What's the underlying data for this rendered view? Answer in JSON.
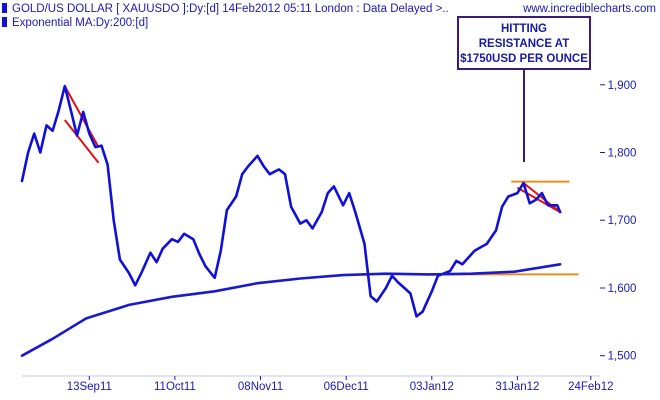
{
  "site": "www.incrediblecharts.com",
  "colors": {
    "price": "#1010d8",
    "ema": "#1a1acc",
    "trendline": "#e01010",
    "support": "#f08c1c",
    "axis_text": "#1a1ab0",
    "annotation_border": "#3c1a78",
    "annotation_text": "#1a1aa0"
  },
  "chart_data": {
    "type": "line",
    "legend": [
      {
        "label": "GOLD/US DOLLAR [ XAUUSDO ]:Dy:[d]  14Feb2012 05:11 London : Data Delayed >..",
        "icon": "color-swatch-icon"
      },
      {
        "label": "Exponential MA:Dy:200:[d]",
        "icon": "color-swatch-icon"
      }
    ],
    "annotation": {
      "lines": [
        "HITTING",
        "RESISTANCE AT",
        "$1750USD PER OUNCE"
      ]
    },
    "y_ticks": [
      {
        "value": 1500,
        "label": "1,500"
      },
      {
        "value": 1600,
        "label": "1,600"
      },
      {
        "value": 1700,
        "label": "1,700"
      },
      {
        "value": 1800,
        "label": "1,800"
      },
      {
        "value": 1900,
        "label": "1,900"
      }
    ],
    "x_ticks": [
      {
        "date": "2011-09-13",
        "label": "13Sep11"
      },
      {
        "date": "2011-10-11",
        "label": "11Oct11"
      },
      {
        "date": "2011-11-08",
        "label": "08Nov11"
      },
      {
        "date": "2011-12-06",
        "label": "06Dec11"
      },
      {
        "date": "2012-01-03",
        "label": "03Jan12"
      },
      {
        "date": "2012-01-31",
        "label": "31Jan12"
      },
      {
        "date": "2012-02-24",
        "label": "24Feb12"
      }
    ],
    "x_range": [
      "2011-08-22",
      "2012-02-27"
    ],
    "ylim": [
      1470,
      1975
    ],
    "grid": false,
    "series": [
      {
        "name": "GOLD/US DOLLAR",
        "points": [
          [
            "2011-08-22",
            1758
          ],
          [
            "2011-08-24",
            1800
          ],
          [
            "2011-08-26",
            1828
          ],
          [
            "2011-08-28",
            1800
          ],
          [
            "2011-08-30",
            1840
          ],
          [
            "2011-09-01",
            1832
          ],
          [
            "2011-09-03",
            1862
          ],
          [
            "2011-09-05",
            1898
          ],
          [
            "2011-09-07",
            1862
          ],
          [
            "2011-09-09",
            1825
          ],
          [
            "2011-09-11",
            1860
          ],
          [
            "2011-09-13",
            1828
          ],
          [
            "2011-09-15",
            1808
          ],
          [
            "2011-09-17",
            1810
          ],
          [
            "2011-09-19",
            1782
          ],
          [
            "2011-09-21",
            1700
          ],
          [
            "2011-09-23",
            1642
          ],
          [
            "2011-09-26",
            1622
          ],
          [
            "2011-09-28",
            1604
          ],
          [
            "2011-09-30",
            1622
          ],
          [
            "2011-10-03",
            1652
          ],
          [
            "2011-10-05",
            1638
          ],
          [
            "2011-10-07",
            1658
          ],
          [
            "2011-10-10",
            1672
          ],
          [
            "2011-10-12",
            1668
          ],
          [
            "2011-10-14",
            1680
          ],
          [
            "2011-10-17",
            1672
          ],
          [
            "2011-10-19",
            1650
          ],
          [
            "2011-10-21",
            1632
          ],
          [
            "2011-10-24",
            1615
          ],
          [
            "2011-10-26",
            1655
          ],
          [
            "2011-10-28",
            1715
          ],
          [
            "2011-10-31",
            1735
          ],
          [
            "2011-11-02",
            1768
          ],
          [
            "2011-11-04",
            1780
          ],
          [
            "2011-11-07",
            1795
          ],
          [
            "2011-11-09",
            1780
          ],
          [
            "2011-11-11",
            1768
          ],
          [
            "2011-11-14",
            1775
          ],
          [
            "2011-11-16",
            1768
          ],
          [
            "2011-11-18",
            1720
          ],
          [
            "2011-11-21",
            1695
          ],
          [
            "2011-11-23",
            1700
          ],
          [
            "2011-11-25",
            1688
          ],
          [
            "2011-11-28",
            1712
          ],
          [
            "2011-11-30",
            1740
          ],
          [
            "2011-12-02",
            1750
          ],
          [
            "2011-12-05",
            1722
          ],
          [
            "2011-12-07",
            1740
          ],
          [
            "2011-12-09",
            1712
          ],
          [
            "2011-12-12",
            1665
          ],
          [
            "2011-12-14",
            1588
          ],
          [
            "2011-12-16",
            1580
          ],
          [
            "2011-12-19",
            1600
          ],
          [
            "2011-12-21",
            1618
          ],
          [
            "2011-12-23",
            1608
          ],
          [
            "2011-12-27",
            1592
          ],
          [
            "2011-12-29",
            1558
          ],
          [
            "2011-12-31",
            1565
          ],
          [
            "2012-01-03",
            1595
          ],
          [
            "2012-01-05",
            1618
          ],
          [
            "2012-01-09",
            1625
          ],
          [
            "2012-01-11",
            1640
          ],
          [
            "2012-01-13",
            1635
          ],
          [
            "2012-01-17",
            1655
          ],
          [
            "2012-01-19",
            1660
          ],
          [
            "2012-01-21",
            1665
          ],
          [
            "2012-01-24",
            1685
          ],
          [
            "2012-01-26",
            1720
          ],
          [
            "2012-01-28",
            1735
          ],
          [
            "2012-01-31",
            1740
          ],
          [
            "2012-02-02",
            1755
          ],
          [
            "2012-02-04",
            1725
          ],
          [
            "2012-02-06",
            1730
          ],
          [
            "2012-02-08",
            1740
          ],
          [
            "2012-02-10",
            1722
          ],
          [
            "2012-02-13",
            1722
          ],
          [
            "2012-02-14",
            1712
          ]
        ]
      },
      {
        "name": "Exponential MA",
        "points": [
          [
            "2011-08-22",
            1500
          ],
          [
            "2011-09-01",
            1525
          ],
          [
            "2011-09-12",
            1555
          ],
          [
            "2011-09-26",
            1575
          ],
          [
            "2011-10-10",
            1587
          ],
          [
            "2011-10-24",
            1595
          ],
          [
            "2011-11-07",
            1607
          ],
          [
            "2011-11-21",
            1614
          ],
          [
            "2011-12-05",
            1619
          ],
          [
            "2011-12-19",
            1621
          ],
          [
            "2012-01-02",
            1620
          ],
          [
            "2012-01-16",
            1621
          ],
          [
            "2012-01-30",
            1624
          ],
          [
            "2012-02-14",
            1635
          ]
        ]
      }
    ],
    "overlays": [
      {
        "kind": "trendline",
        "from": [
          "2011-09-05",
          1898
        ],
        "to": [
          "2011-09-16",
          1808
        ]
      },
      {
        "kind": "trendline",
        "from": [
          "2011-09-05",
          1848
        ],
        "to": [
          "2011-09-16",
          1785
        ]
      },
      {
        "kind": "trendline",
        "from": [
          "2012-01-31",
          1748
        ],
        "to": [
          "2012-02-14",
          1712
        ]
      },
      {
        "kind": "trendline",
        "from": [
          "2012-02-02",
          1755
        ],
        "to": [
          "2012-02-14",
          1712
        ]
      },
      {
        "kind": "resistance",
        "from": [
          "2012-01-29",
          1757
        ],
        "to": [
          "2012-02-17",
          1757
        ]
      },
      {
        "kind": "support",
        "from": [
          "2012-01-01",
          1620
        ],
        "to": [
          "2012-02-20",
          1620
        ]
      }
    ]
  }
}
